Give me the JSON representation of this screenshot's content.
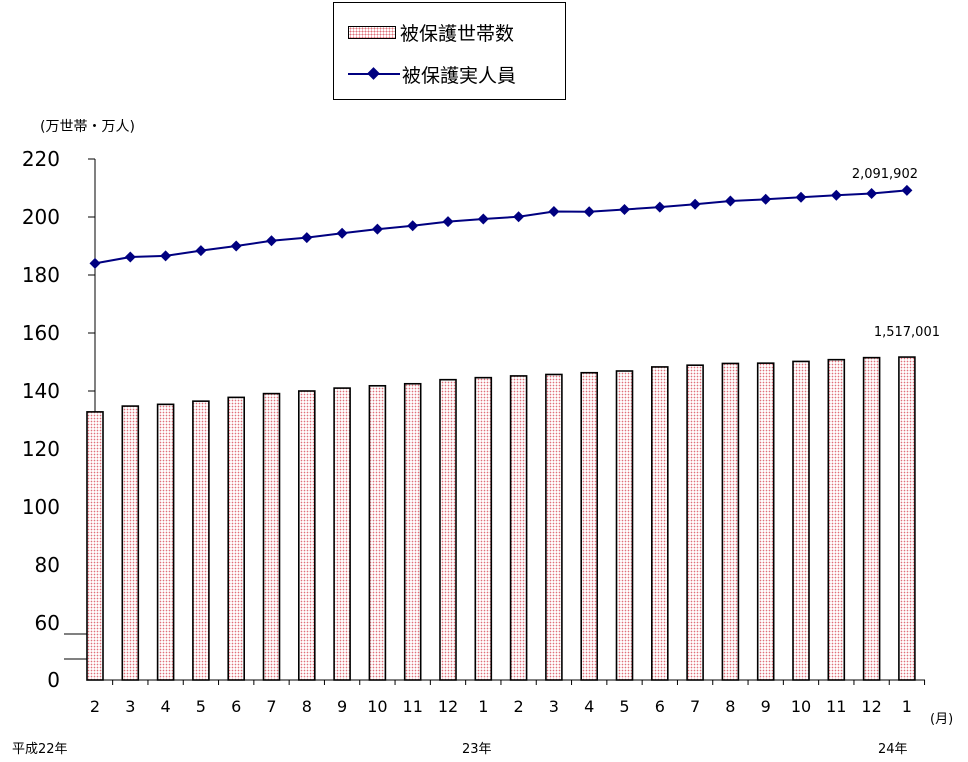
{
  "legend": {
    "households_label": "被保護世帯数",
    "persons_label": "被保護実人員"
  },
  "unit_label": "(万世帯・万人)",
  "x_unit_label": "(月)",
  "era_labels": [
    "平成22年",
    "23年",
    "24年"
  ],
  "annotations": {
    "households_last": "1,517,001",
    "persons_last": "2,091,902"
  },
  "colors": {
    "bar_fill_dot": "#e0707a",
    "bar_border": "#000000",
    "line": "#000080"
  },
  "chart_data": {
    "type": "bar",
    "categories": [
      "2",
      "3",
      "4",
      "5",
      "6",
      "7",
      "8",
      "9",
      "10",
      "11",
      "12",
      "1",
      "2",
      "3",
      "4",
      "5",
      "6",
      "7",
      "8",
      "9",
      "10",
      "11",
      "12",
      "1"
    ],
    "series": [
      {
        "name": "被保護世帯数",
        "kind": "bar",
        "values": [
          132.8,
          134.8,
          135.4,
          136.5,
          137.8,
          139.1,
          140.0,
          141.0,
          141.8,
          142.5,
          143.9,
          144.6,
          145.2,
          145.7,
          146.3,
          146.9,
          148.3,
          148.9,
          149.5,
          149.6,
          150.2,
          150.8,
          151.5,
          151.7
        ]
      },
      {
        "name": "被保護実人員",
        "kind": "line",
        "values": [
          184.0,
          186.2,
          186.6,
          188.4,
          190.0,
          191.8,
          192.9,
          194.4,
          195.8,
          197.0,
          198.4,
          199.3,
          200.1,
          201.9,
          201.8,
          202.6,
          203.4,
          204.4,
          205.5,
          206.1,
          206.8,
          207.5,
          208.1,
          209.2
        ]
      }
    ],
    "y_ticks": [
      0,
      60,
      80,
      100,
      120,
      140,
      160,
      180,
      200,
      220
    ],
    "ylim_upper": [
      60,
      220
    ],
    "axis_break": true,
    "xlabel": "(月)",
    "ylabel": "(万世帯・万人)",
    "grid": false,
    "legend_position": "top-center"
  }
}
